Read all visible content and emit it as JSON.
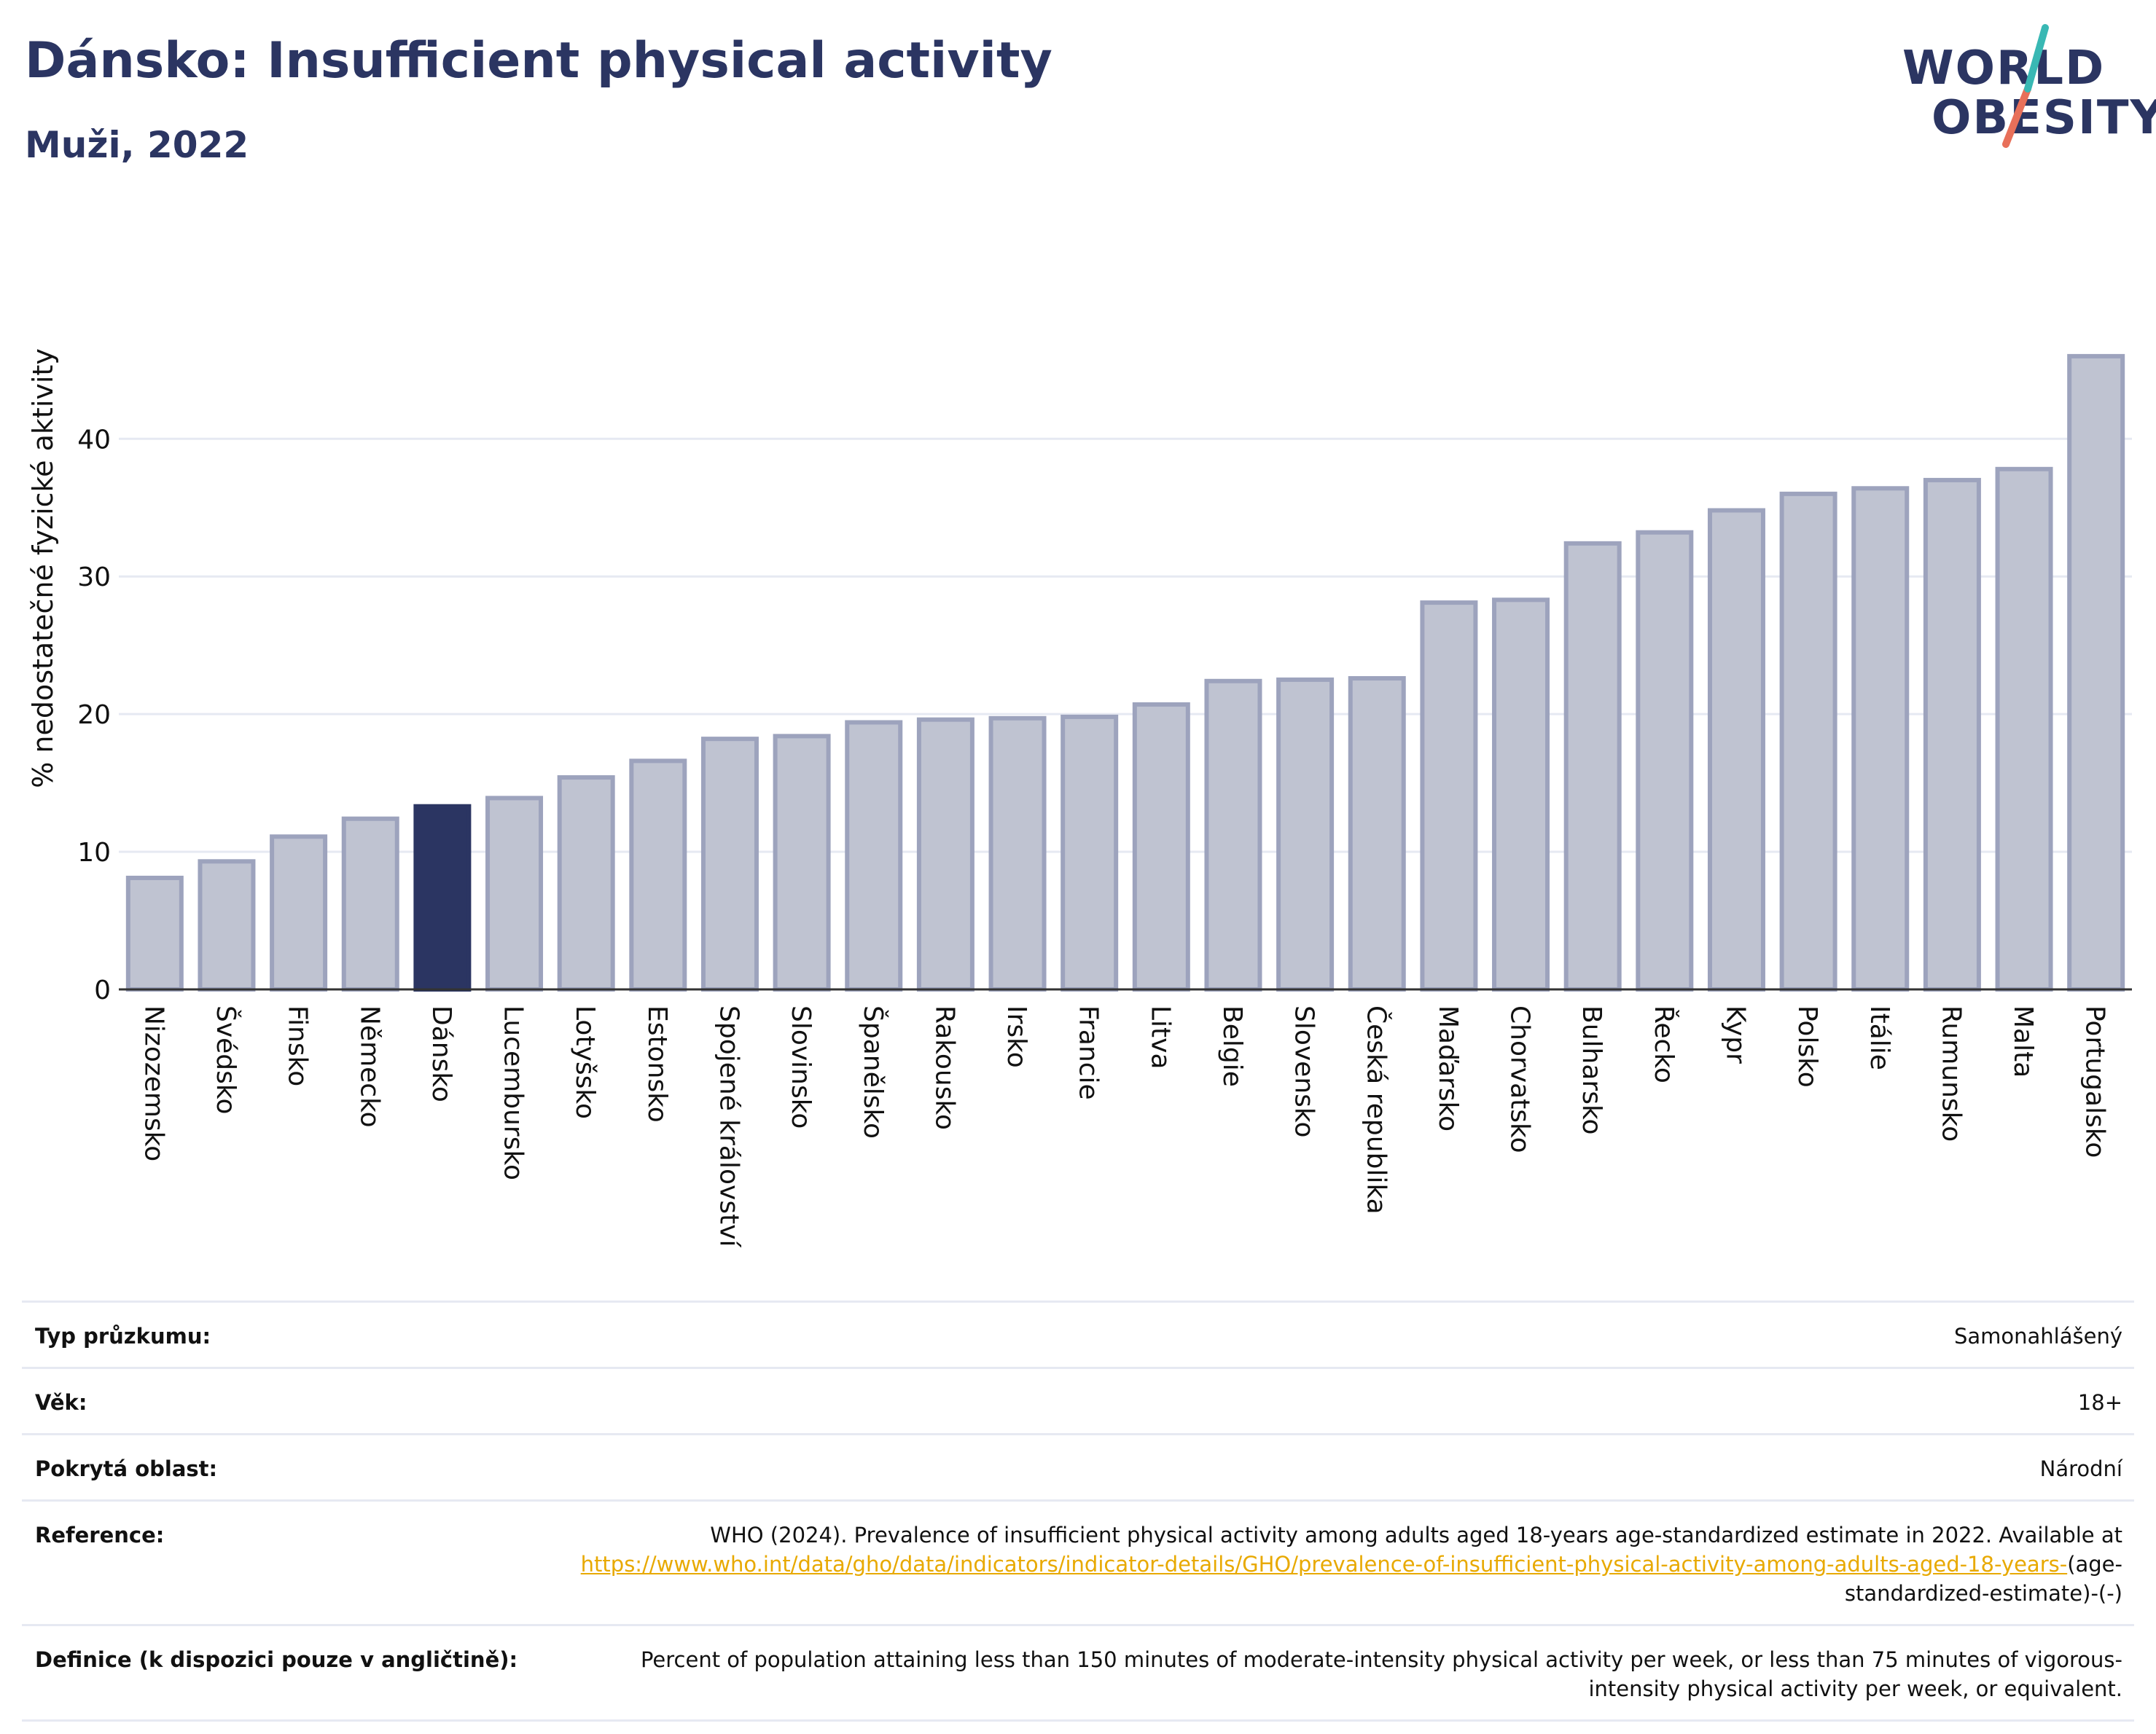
{
  "title": "Dánsko: Insufficient physical activity",
  "subtitle": "Muži, 2022",
  "logo": {
    "line1": "WORLD",
    "line2": "OBESITY"
  },
  "colors": {
    "bar": "#bfc3d1",
    "bar_edge": "#9da3bd",
    "highlight": "#2b3562",
    "grid": "#e6e9f2",
    "link": "#e8a900"
  },
  "chart_data": {
    "type": "bar",
    "ylabel": "% nedostatečné fyzické aktivity",
    "ylim": [
      0,
      47
    ],
    "yticks": [
      0,
      10,
      20,
      30,
      40
    ],
    "grid": true,
    "highlight": "Dánsko",
    "categories": [
      "Nizozemsko",
      "Švédsko",
      "Finsko",
      "Německo",
      "Dánsko",
      "Lucembursko",
      "Lotyšsko",
      "Estonsko",
      "Spojené království",
      "Slovinsko",
      "Španělsko",
      "Rakousko",
      "Irsko",
      "Francie",
      "Litva",
      "Belgie",
      "Slovensko",
      "Česká republika",
      "Maďarsko",
      "Chorvatsko",
      "Bulharsko",
      "Řecko",
      "Kypr",
      "Polsko",
      "Itálie",
      "Rumunsko",
      "Malta",
      "Portugalsko"
    ],
    "values": [
      8.1,
      9.3,
      11.1,
      12.4,
      13.3,
      13.9,
      15.4,
      16.6,
      18.2,
      18.4,
      19.4,
      19.6,
      19.7,
      19.8,
      20.7,
      22.4,
      22.5,
      22.6,
      28.1,
      28.3,
      32.4,
      33.2,
      34.8,
      36.0,
      36.4,
      37.0,
      37.8,
      46.0
    ]
  },
  "info": [
    {
      "label": "Typ průzkumu:",
      "value": "Samonahlášený"
    },
    {
      "label": "Věk:",
      "value": "18+"
    },
    {
      "label": "Pokrytá oblast:",
      "value": "Národní"
    },
    {
      "label": "Reference:",
      "value_pre": "WHO (2024). Prevalence of insufficient physical activity among adults aged 18-years age-standardized estimate in 2022. Available at",
      "link": "https://www.who.int/data/gho/data/indicators/indicator-details/GHO/prevalence-of-insufficient-physical-activity-among-adults-aged-18-years-",
      "value_post": "(age-standardized-estimate)-(-)"
    },
    {
      "label": "Definice (k dispozici pouze v angličtině):",
      "value": "Percent of population attaining less than 150 minutes of moderate-intensity physical activity per week, or less than 75 minutes of vigorous-intensity physical activity per week, or equivalent."
    }
  ]
}
